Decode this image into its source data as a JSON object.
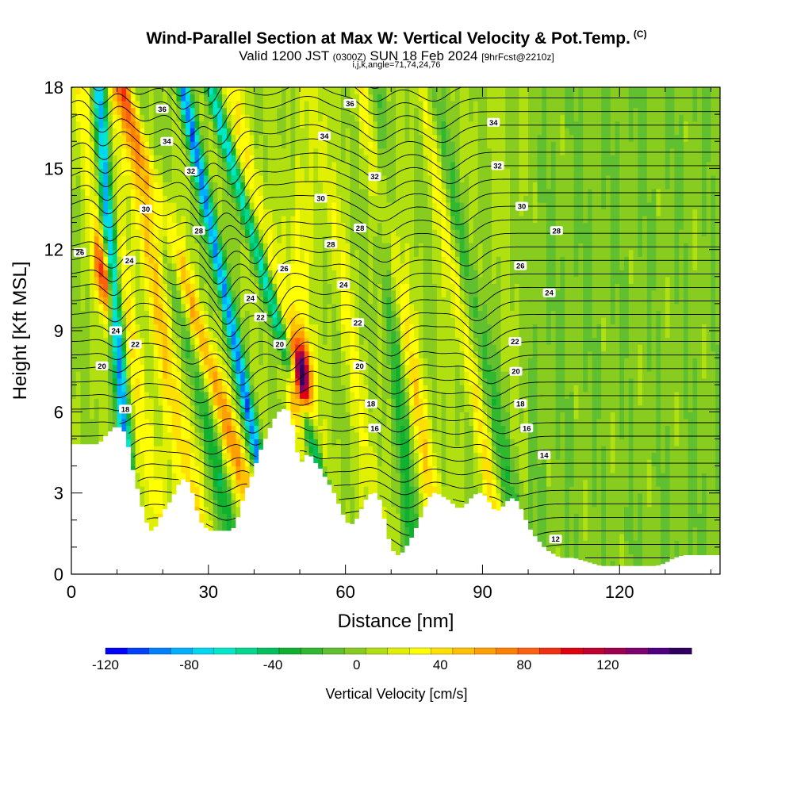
{
  "header": {
    "title": "Wind-Parallel Section at Max W: Vertical Velocity & Pot.Temp.",
    "corner_mark": "(C)",
    "subtitle_main_a": "Valid 1200 JST",
    "subtitle_small_a": "(0300Z)",
    "subtitle_main_b": "SUN 18 Feb 2024",
    "subtitle_small_b": "[9hrFcst@2210z]",
    "subtitle_line2": "i,j,k,angle=71,74,24,76"
  },
  "chart_data": {
    "type": "heatmap",
    "title": "Wind-Parallel Section at Max W: Vertical Velocity & Pot.Temp.",
    "xlabel": "Distance [nm]",
    "ylabel": "Height [Kft MSL]",
    "xlim": [
      0,
      142
    ],
    "ylim": [
      0,
      18
    ],
    "x_ticks": [
      0,
      30,
      60,
      90,
      120
    ],
    "x_tick_labels": [
      "0",
      "30",
      "60",
      "90",
      "120"
    ],
    "y_ticks": [
      0,
      3,
      6,
      9,
      12,
      15,
      18
    ],
    "y_tick_labels": [
      "0",
      "3",
      "6",
      "9",
      "12",
      "15",
      "18"
    ],
    "colorbar": {
      "label": "Vertical Velocity [cm/s]",
      "min": -120,
      "max": 150,
      "step": 10,
      "tick_values": [
        -120,
        -80,
        -40,
        0,
        40,
        80,
        120
      ],
      "tick_labels": [
        "-120",
        "-80",
        "-40",
        "0",
        "40",
        "80",
        "120"
      ],
      "colors": [
        "#0000ff",
        "#0040ff",
        "#0080ff",
        "#00b0ff",
        "#00d8f0",
        "#00e8c8",
        "#00d890",
        "#00c060",
        "#10b030",
        "#30b830",
        "#60c030",
        "#88cc20",
        "#b0e010",
        "#e0f000",
        "#ffff00",
        "#ffe000",
        "#ffc000",
        "#ffa000",
        "#ff8000",
        "#ff6010",
        "#f03010",
        "#e00010",
        "#c00030",
        "#a00050",
        "#800070",
        "#500080",
        "#300060"
      ]
    },
    "terrain": {
      "x": [
        0,
        6,
        8,
        10,
        12,
        13,
        14,
        15,
        16,
        17,
        18,
        19,
        20,
        21,
        22,
        23,
        24,
        25,
        26,
        27,
        28,
        29,
        30,
        31,
        32,
        33,
        34,
        35,
        36,
        37,
        38,
        39,
        40,
        41,
        42,
        43,
        44,
        45,
        46,
        47,
        48,
        49,
        50,
        51,
        52,
        53,
        54,
        55,
        56,
        57,
        58,
        59,
        60,
        61,
        62,
        63,
        64,
        65,
        66,
        67,
        68,
        69,
        70,
        71,
        72,
        73,
        74,
        75,
        76,
        77,
        78,
        79,
        80,
        81,
        82,
        83,
        84,
        85,
        86,
        87,
        88,
        89,
        90,
        91,
        92,
        93,
        94,
        95,
        96,
        97,
        98,
        99,
        100,
        101,
        102,
        103,
        104,
        105,
        106,
        107,
        108,
        109,
        110,
        112,
        114,
        116,
        118,
        120,
        122,
        124,
        126,
        128,
        130,
        132,
        134,
        136,
        138,
        140,
        142
      ],
      "kft": [
        4.8,
        4.8,
        5.2,
        5.5,
        5.2,
        4.2,
        3.5,
        2.8,
        2.2,
        1.6,
        1.6,
        1.9,
        2.3,
        2.5,
        2.8,
        3.1,
        3.5,
        3.5,
        3.3,
        2.7,
        2.0,
        1.8,
        1.6,
        1.6,
        1.6,
        1.6,
        1.6,
        1.6,
        1.8,
        2.4,
        3.0,
        3.4,
        3.8,
        4.4,
        4.8,
        5.2,
        5.6,
        5.9,
        6.1,
        6.1,
        6.0,
        5.0,
        4.0,
        4.3,
        4.5,
        4.2,
        4.0,
        3.8,
        3.4,
        3.2,
        2.8,
        2.4,
        2.0,
        1.8,
        1.9,
        2.2,
        2.6,
        2.9,
        3.0,
        3.0,
        2.5,
        1.6,
        1.0,
        0.7,
        0.7,
        0.9,
        1.2,
        1.5,
        1.9,
        2.3,
        2.7,
        3.0,
        3.0,
        2.9,
        2.8,
        2.7,
        2.5,
        2.4,
        2.5,
        2.7,
        2.9,
        3.0,
        3.0,
        2.8,
        2.5,
        2.3,
        2.4,
        2.6,
        2.8,
        2.8,
        2.6,
        2.2,
        1.8,
        1.5,
        1.3,
        1.1,
        0.9,
        0.8,
        0.7,
        0.6,
        0.6,
        0.6,
        0.6,
        0.5,
        0.4,
        0.3,
        0.3,
        0.3,
        0.3,
        0.3,
        0.3,
        0.3,
        0.4,
        0.6,
        0.7,
        0.7,
        0.7,
        0.7,
        0.7
      ]
    },
    "updraft_bands": [
      {
        "x_base": 21,
        "slope": -0.9,
        "peak": 30,
        "width": 2.2
      },
      {
        "x_base": 29,
        "slope": -1.0,
        "peak": 40,
        "width": 2.6
      },
      {
        "x_base": 44,
        "slope": -1.8,
        "peak": 55,
        "width": 2.4
      },
      {
        "x_base": 51,
        "slope": -0.1,
        "peak": 130,
        "width": 2.2
      },
      {
        "x_base": 60,
        "slope": -1.4,
        "peak": 25,
        "width": 2.4
      },
      {
        "x_base": 69,
        "slope": -0.9,
        "peak": 20,
        "width": 2.0
      },
      {
        "x_base": 82,
        "slope": -1.0,
        "peak": 35,
        "width": 2.2
      },
      {
        "x_base": 95,
        "slope": -1.0,
        "peak": 30,
        "width": 1.8
      },
      {
        "x_base": 16,
        "slope": -0.8,
        "peak": 90,
        "width": 1.8
      }
    ],
    "downdraft_bands": [
      {
        "x_base": 14,
        "slope": -0.45,
        "peak": -110,
        "width": 1.5
      },
      {
        "x_base": 46,
        "slope": -1.2,
        "peak": -95,
        "width": 1.4
      },
      {
        "x_base": 61,
        "slope": -1.7,
        "peak": -70,
        "width": 1.4
      },
      {
        "x_base": 37,
        "slope": -1.3,
        "peak": -35,
        "width": 2.0
      },
      {
        "x_base": 75,
        "slope": -0.5,
        "peak": -30,
        "width": 2.0
      },
      {
        "x_base": 100,
        "slope": -1.2,
        "peak": -25,
        "width": 2.2
      }
    ],
    "isentropes": {
      "labels": [
        {
          "text": "36",
          "x": 19.9,
          "y": 17.2
        },
        {
          "text": "34",
          "x": 20.9,
          "y": 16.0
        },
        {
          "text": "32",
          "x": 26.2,
          "y": 14.9
        },
        {
          "text": "30",
          "x": 16.3,
          "y": 13.5
        },
        {
          "text": "28",
          "x": 27.9,
          "y": 12.7
        },
        {
          "text": "26",
          "x": 1.9,
          "y": 11.9
        },
        {
          "text": "24",
          "x": 12.7,
          "y": 11.6
        },
        {
          "text": "24",
          "x": 9.7,
          "y": 9.0
        },
        {
          "text": "22",
          "x": 14.0,
          "y": 8.5
        },
        {
          "text": "20",
          "x": 6.7,
          "y": 7.7
        },
        {
          "text": "18",
          "x": 11.8,
          "y": 6.1
        },
        {
          "text": "24",
          "x": 39.2,
          "y": 10.2
        },
        {
          "text": "22",
          "x": 41.4,
          "y": 9.5
        },
        {
          "text": "20",
          "x": 45.6,
          "y": 8.5
        },
        {
          "text": "26",
          "x": 46.6,
          "y": 11.3
        },
        {
          "text": "30",
          "x": 54.6,
          "y": 13.9
        },
        {
          "text": "34",
          "x": 55.4,
          "y": 16.2
        },
        {
          "text": "36",
          "x": 61.0,
          "y": 17.4
        },
        {
          "text": "32",
          "x": 66.4,
          "y": 14.7
        },
        {
          "text": "28",
          "x": 63.2,
          "y": 12.8
        },
        {
          "text": "28",
          "x": 56.8,
          "y": 12.2
        },
        {
          "text": "24",
          "x": 59.6,
          "y": 10.7
        },
        {
          "text": "22",
          "x": 62.7,
          "y": 9.3
        },
        {
          "text": "20",
          "x": 63.1,
          "y": 7.7
        },
        {
          "text": "18",
          "x": 65.6,
          "y": 6.3
        },
        {
          "text": "16",
          "x": 66.4,
          "y": 5.4
        },
        {
          "text": "34",
          "x": 92.4,
          "y": 16.7
        },
        {
          "text": "32",
          "x": 93.3,
          "y": 15.1
        },
        {
          "text": "30",
          "x": 98.6,
          "y": 13.6
        },
        {
          "text": "28",
          "x": 106.2,
          "y": 12.7
        },
        {
          "text": "26",
          "x": 98.3,
          "y": 11.4
        },
        {
          "text": "24",
          "x": 104.6,
          "y": 10.4
        },
        {
          "text": "22",
          "x": 97.1,
          "y": 8.6
        },
        {
          "text": "20",
          "x": 97.3,
          "y": 7.5
        },
        {
          "text": "18",
          "x": 98.3,
          "y": 6.3
        },
        {
          "text": "16",
          "x": 99.7,
          "y": 5.4
        },
        {
          "text": "14",
          "x": 103.5,
          "y": 4.4
        },
        {
          "text": "12",
          "x": 106.0,
          "y": 1.3
        }
      ]
    }
  }
}
